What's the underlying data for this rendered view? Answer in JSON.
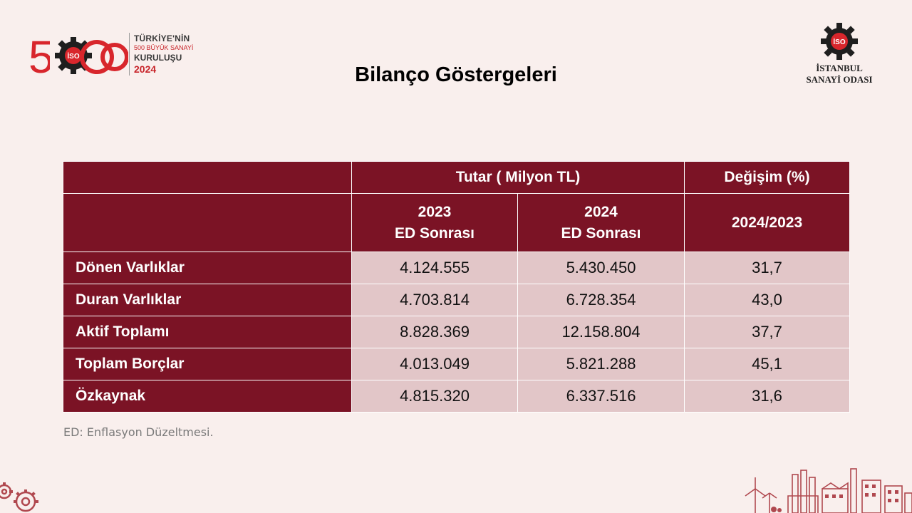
{
  "header": {
    "logo_number": "500",
    "logo_emblem": "İSO",
    "logo_line1": "TÜRKİYE'NİN",
    "logo_line2": "500 BÜYÜK SANAYİ",
    "logo_line3": "KURULUŞU",
    "logo_year": "2024",
    "title": "Bilanço Göstergeleri",
    "org_emblem": "İSO",
    "org_name_line1": "İSTANBUL",
    "org_name_line2": "SANAYİ ODASI"
  },
  "table": {
    "group_header_amount": "Tutar ( Milyon TL)",
    "group_header_change": "Değişim (%)",
    "col_2023_year": "2023",
    "col_2023_sub": "ED Sonrası",
    "col_2024_year": "2024",
    "col_2024_sub": "ED Sonrası",
    "col_change": "2024/2023",
    "rows": [
      {
        "label": "Dönen Varlıklar",
        "v2023": "4.124.555",
        "v2024": "5.430.450",
        "change": "31,7"
      },
      {
        "label": "Duran Varlıklar",
        "v2023": "4.703.814",
        "v2024": "6.728.354",
        "change": "43,0"
      },
      {
        "label": "Aktif Toplamı",
        "v2023": "8.828.369",
        "v2024": "12.158.804",
        "change": "37,7"
      },
      {
        "label": "Toplam Borçlar",
        "v2023": "4.013.049",
        "v2024": "5.821.288",
        "change": "45,1"
      },
      {
        "label": "Özkaynak",
        "v2023": "4.815.320",
        "v2024": "6.337.516",
        "change": "31,6"
      }
    ]
  },
  "footnote": "ED: Enflasyon Düzeltmesi.",
  "colors": {
    "background": "#f9efed",
    "header_fill": "#7b1325",
    "cell_fill": "#e2c6c8",
    "brand_red": "#c8252b"
  }
}
